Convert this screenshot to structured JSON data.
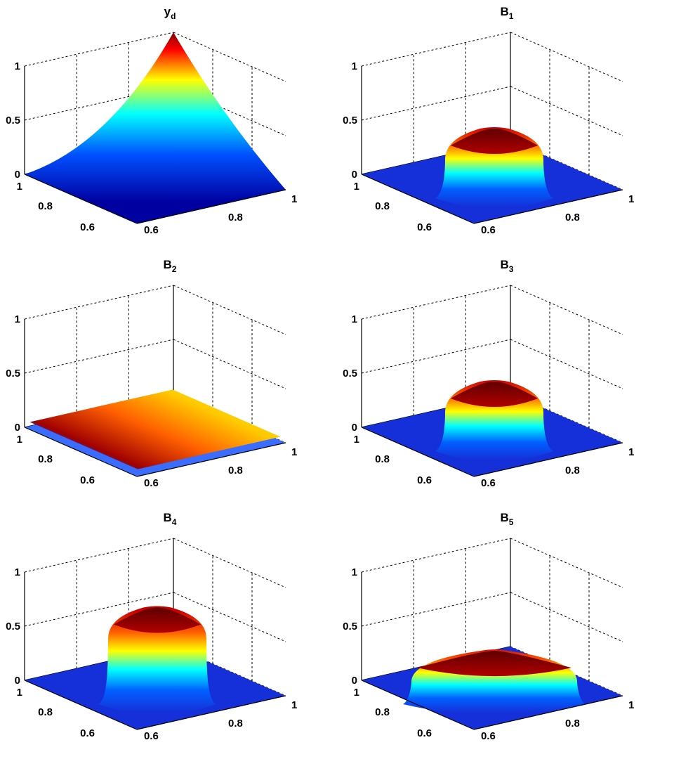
{
  "chart_data": [
    {
      "type": "surface",
      "title": "y",
      "title_sub": "d",
      "surface": "peak-corner",
      "zticks": [
        "0",
        "0.5",
        "1"
      ],
      "xticks": [
        "0.6",
        "0.8",
        "1"
      ],
      "yticks": [
        "0.6",
        "0.8",
        "1"
      ],
      "zlim": [
        0,
        1
      ],
      "peak_value": 1,
      "colormap": "jet",
      "grid": true
    },
    {
      "type": "surface",
      "title": "B",
      "title_sub": "1",
      "surface": "plateau",
      "zticks": [
        "0",
        "0.5",
        "1"
      ],
      "xticks": [
        "0.6",
        "0.8",
        "1"
      ],
      "yticks": [
        "0.6",
        "0.8",
        "1"
      ],
      "zlim": [
        0,
        1
      ],
      "peak_value": 0.5,
      "colormap": "jet",
      "grid": true
    },
    {
      "type": "surface",
      "title": "B",
      "title_sub": "2",
      "surface": "flat-plate",
      "zticks": [
        "0",
        "0.5",
        "1"
      ],
      "xticks": [
        "0.6",
        "0.8",
        "1"
      ],
      "yticks": [
        "0.6",
        "0.8",
        "1"
      ],
      "zlim": [
        0,
        1
      ],
      "peak_value": 0.05,
      "colormap": "jet",
      "grid": true
    },
    {
      "type": "surface",
      "title": "B",
      "title_sub": "3",
      "surface": "plateau",
      "zticks": [
        "0",
        "0.5",
        "1"
      ],
      "xticks": [
        "0.6",
        "0.8",
        "1"
      ],
      "yticks": [
        "0.6",
        "0.8",
        "1"
      ],
      "zlim": [
        0,
        1
      ],
      "peak_value": 0.5,
      "colormap": "jet",
      "grid": true
    },
    {
      "type": "surface",
      "title": "B",
      "title_sub": "4",
      "surface": "plateau",
      "zticks": [
        "0",
        "0.5",
        "1"
      ],
      "xticks": [
        "0.6",
        "0.8",
        "1"
      ],
      "yticks": [
        "0.6",
        "0.8",
        "1"
      ],
      "zlim": [
        0,
        1
      ],
      "peak_value": 0.75,
      "colormap": "jet",
      "grid": true
    },
    {
      "type": "surface",
      "title": "B",
      "title_sub": "5",
      "surface": "wide-plateau",
      "zticks": [
        "0",
        "0.5",
        "1"
      ],
      "xticks": [
        "0.6",
        "0.8",
        "1"
      ],
      "yticks": [
        "0.6",
        "0.8",
        "1"
      ],
      "zlim": [
        0,
        1
      ],
      "peak_value": 0.35,
      "colormap": "jet",
      "grid": true
    }
  ]
}
